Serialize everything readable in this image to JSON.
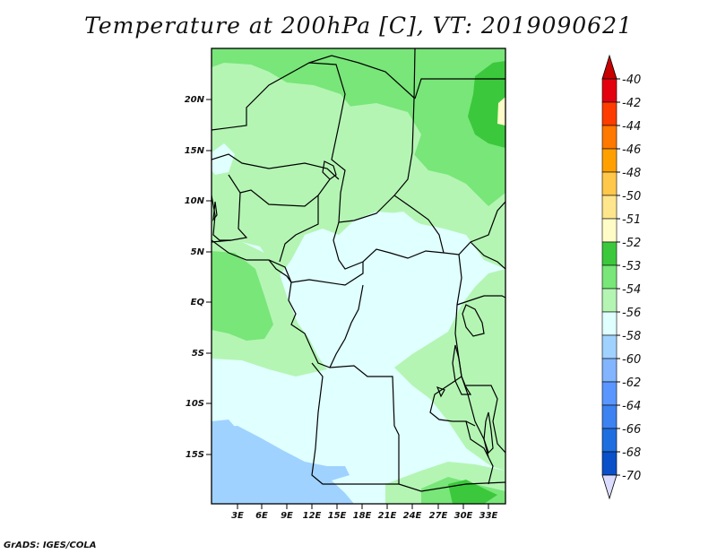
{
  "title": "Temperature at 200hPa [C], VT: 2019090621",
  "credit": "GrADS: IGES/COLA",
  "map": {
    "variable": "Temperature at 200hPa",
    "units": "C",
    "lat_labels": [
      "20N",
      "15N",
      "10N",
      "5N",
      "EQ",
      "5S",
      "10S",
      "15S"
    ],
    "lon_labels": [
      "3E",
      "6E",
      "9E",
      "12E",
      "15E",
      "18E",
      "21E",
      "24E",
      "27E",
      "30E",
      "33E"
    ]
  },
  "colorbar": {
    "levels": [
      {
        "label": "-40",
        "color": "#e3000f"
      },
      {
        "label": "-42",
        "color": "#ff3c00"
      },
      {
        "label": "-44",
        "color": "#ff7800"
      },
      {
        "label": "-46",
        "color": "#ffa000"
      },
      {
        "label": "-48",
        "color": "#ffc84b"
      },
      {
        "label": "-50",
        "color": "#ffe68c"
      },
      {
        "label": "-51",
        "color": "#fffcc8"
      },
      {
        "label": "-52",
        "color": "#3cc83c"
      },
      {
        "label": "-53",
        "color": "#78e678"
      },
      {
        "label": "-54",
        "color": "#b4f5b4"
      },
      {
        "label": "-56",
        "color": "#e0ffff"
      },
      {
        "label": "-58",
        "color": "#a0d2ff"
      },
      {
        "label": "-60",
        "color": "#82b4ff"
      },
      {
        "label": "-62",
        "color": "#5a96ff"
      },
      {
        "label": "-64",
        "color": "#3c82f0"
      },
      {
        "label": "-66",
        "color": "#1e6ee0"
      },
      {
        "label": "-68",
        "color": "#0a50c8"
      },
      {
        "label": "-70",
        "color": "#0a28a0"
      }
    ],
    "low_end_color": "#000a78",
    "high_triangle_color": "#c80000",
    "low_triangle_color": "#dcdcff"
  }
}
